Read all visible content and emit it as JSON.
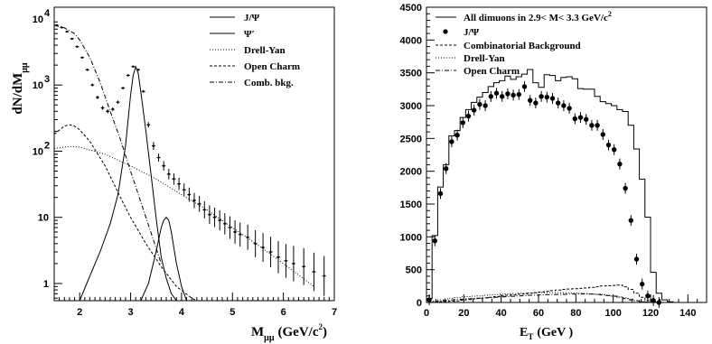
{
  "chart_data": [
    {
      "type": "line",
      "log_y": true,
      "xlabel": "M",
      "xlabel_sub": "μμ",
      "xlabel_unit": "(GeV/c",
      "xlabel_sup": "2",
      "xlabel_close": ")",
      "ylabel": "dN/dM",
      "ylabel_sub": "μμ",
      "xlim": [
        1.5,
        7
      ],
      "ylim": [
        0.55,
        15000
      ],
      "x_ticks": [
        "2",
        "3",
        "4",
        "5",
        "6",
        "7"
      ],
      "y_ticks": [
        {
          "value": 1,
          "label": "1"
        },
        {
          "value": 10,
          "label": "10"
        },
        {
          "value": 100,
          "base": "10",
          "exp": "2"
        },
        {
          "value": 1000,
          "base": "10",
          "exp": "3"
        },
        {
          "value": 10000,
          "base": "10",
          "exp": "4"
        }
      ],
      "legend_position": "top-right",
      "series": [
        {
          "name": "J/Ψ",
          "style": "solid",
          "x": [
            2.0,
            2.2,
            2.4,
            2.6,
            2.75,
            2.9,
            3.0,
            3.05,
            3.1,
            3.15,
            3.2,
            3.3,
            3.4,
            3.5,
            3.6,
            3.7,
            3.8,
            3.9
          ],
          "y": [
            0.55,
            1.3,
            3.0,
            8,
            22,
            120,
            700,
            1400,
            1900,
            1500,
            800,
            200,
            45,
            10,
            2.5,
            1.2,
            0.7,
            0.55
          ]
        },
        {
          "name": "Ψ′",
          "style": "solid",
          "x": [
            3.2,
            3.35,
            3.5,
            3.6,
            3.65,
            3.7,
            3.75,
            3.8,
            3.9,
            4.0,
            4.1
          ],
          "y": [
            0.55,
            1.0,
            3.0,
            7.0,
            9.0,
            10,
            9.0,
            6.0,
            2.0,
            0.9,
            0.55
          ]
        },
        {
          "name": "Drell-Yan",
          "style": "dotted",
          "x": [
            1.5,
            1.8,
            2.0,
            2.5,
            3.0,
            3.5,
            4.0,
            4.5,
            5.0,
            5.5,
            6.0,
            6.6
          ],
          "y": [
            110,
            118,
            115,
            90,
            60,
            38,
            22,
            13,
            7,
            3.8,
            2.0,
            0.9
          ]
        },
        {
          "name": "Open Charm",
          "style": "dashed",
          "x": [
            1.5,
            1.7,
            1.8,
            1.9,
            2.0,
            2.2,
            2.5,
            2.8,
            3.0,
            3.3,
            3.6,
            3.9,
            4.2,
            4.3
          ],
          "y": [
            180,
            240,
            250,
            240,
            210,
            140,
            60,
            20,
            10,
            4.0,
            1.8,
            0.9,
            0.6,
            0.55
          ]
        },
        {
          "name": "Comb. bkg.",
          "style": "dashdot",
          "x": [
            1.5,
            1.7,
            1.9,
            2.0,
            2.2,
            2.4,
            2.6,
            2.8,
            3.0,
            3.3,
            3.6
          ],
          "y": [
            8000,
            7300,
            6000,
            4800,
            2600,
            1100,
            400,
            150,
            50,
            10,
            2.0
          ]
        }
      ],
      "data_points": {
        "x": [
          1.55,
          1.65,
          1.75,
          1.85,
          1.95,
          2.05,
          2.15,
          2.25,
          2.35,
          2.45,
          2.55,
          2.65,
          2.75,
          2.85,
          2.95,
          3.05,
          3.15,
          3.25,
          3.35,
          3.45,
          3.55,
          3.65,
          3.75,
          3.85,
          3.95,
          4.05,
          4.15,
          4.25,
          4.35,
          4.45,
          4.55,
          4.65,
          4.75,
          4.85,
          4.95,
          5.05,
          5.15,
          5.3,
          5.45,
          5.6,
          5.75,
          5.9,
          6.05,
          6.2,
          6.4,
          6.6,
          6.8
        ],
        "y": [
          8000,
          7400,
          6400,
          5000,
          3800,
          2600,
          1700,
          1000,
          650,
          450,
          400,
          430,
          550,
          900,
          1400,
          1900,
          1700,
          800,
          250,
          120,
          80,
          60,
          45,
          38,
          32,
          26,
          22,
          18,
          16,
          13,
          11,
          10,
          9,
          8,
          7,
          6,
          5.5,
          5,
          4,
          3.5,
          3,
          2.5,
          2.2,
          2,
          1.8,
          1.5,
          1.3
        ],
        "err": [
          0.02,
          0.02,
          0.02,
          0.03,
          0.03,
          0.03,
          0.04,
          0.05,
          0.06,
          0.07,
          0.07,
          0.07,
          0.06,
          0.05,
          0.04,
          0.03,
          0.03,
          0.05,
          0.1,
          0.15,
          0.15,
          0.18,
          0.2,
          0.22,
          0.24,
          0.25,
          0.28,
          0.3,
          0.32,
          0.35,
          0.38,
          0.4,
          0.42,
          0.45,
          0.48,
          0.5,
          0.52,
          0.55,
          0.6,
          0.65,
          0.7,
          0.75,
          0.8,
          0.85,
          0.9,
          0.95,
          1.0
        ]
      }
    },
    {
      "type": "bar",
      "xlabel": "E",
      "xlabel_sub": "T",
      "xlabel_unit": "(GeV )",
      "xlim": [
        0,
        150
      ],
      "ylim": [
        0,
        4500
      ],
      "x_ticks": [
        "0",
        "20",
        "40",
        "60",
        "80",
        "100",
        "120",
        "140"
      ],
      "y_ticks": [
        "0",
        "500",
        "1000",
        "1500",
        "2000",
        "2500",
        "3000",
        "3500",
        "4000",
        "4500"
      ],
      "legend_position": "top-left",
      "bin_width": 3,
      "bin_starts": [
        0,
        3,
        6,
        9,
        12,
        15,
        18,
        21,
        24,
        27,
        30,
        33,
        36,
        39,
        42,
        45,
        48,
        51,
        54,
        57,
        60,
        63,
        66,
        69,
        72,
        75,
        78,
        81,
        84,
        87,
        90,
        93,
        96,
        99,
        102,
        105,
        108,
        111,
        114,
        117,
        120,
        123,
        126,
        129,
        132
      ],
      "series": [
        {
          "name": "All dimuons in 2.9< M< 3.3 GeV/c²",
          "style": "histogram",
          "values": [
            60,
            1020,
            1760,
            2100,
            2540,
            2620,
            2820,
            2940,
            3050,
            3130,
            3200,
            3290,
            3350,
            3380,
            3450,
            3400,
            3440,
            3480,
            3550,
            3350,
            3280,
            3470,
            3460,
            3380,
            3430,
            3440,
            3410,
            3260,
            3250,
            3250,
            3140,
            3060,
            3030,
            3000,
            2940,
            2910,
            2700,
            2340,
            1880,
            1300,
            460,
            140,
            40,
            10,
            0
          ]
        },
        {
          "name": "J/Ψ",
          "style": "points",
          "x": [
            1.5,
            4.5,
            7.5,
            10.5,
            13.5,
            16.5,
            19.5,
            22.5,
            25.5,
            28.5,
            31.5,
            34.5,
            37.5,
            40.5,
            43.5,
            46.5,
            49.5,
            52.5,
            55.5,
            58.5,
            61.5,
            64.5,
            67.5,
            70.5,
            73.5,
            76.5,
            79.5,
            82.5,
            85.5,
            88.5,
            91.5,
            94.5,
            97.5,
            100.5,
            103.5,
            106.5,
            109.5,
            112.5,
            115.5,
            118.5,
            121.5,
            124.5
          ],
          "values": [
            40,
            940,
            1660,
            2040,
            2450,
            2550,
            2740,
            2840,
            2930,
            3020,
            3000,
            3140,
            3190,
            3140,
            3180,
            3160,
            3170,
            3290,
            3080,
            3040,
            3140,
            3130,
            3110,
            3040,
            3000,
            2960,
            2800,
            2820,
            2790,
            2700,
            2700,
            2560,
            2400,
            2330,
            2110,
            1740,
            1250,
            660,
            280,
            100,
            30,
            0
          ]
        },
        {
          "name": "Combinatorial Background",
          "style": "dashed",
          "values": [
            0,
            5,
            10,
            15,
            20,
            25,
            35,
            45,
            55,
            60,
            70,
            80,
            90,
            100,
            110,
            115,
            125,
            130,
            140,
            150,
            160,
            170,
            180,
            190,
            200,
            205,
            210,
            215,
            220,
            230,
            240,
            250,
            255,
            260,
            265,
            240,
            200,
            140,
            80,
            30,
            5,
            0,
            0,
            0,
            0
          ]
        },
        {
          "name": "Drell-Yan",
          "style": "dotted",
          "values": [
            0,
            20,
            40,
            55,
            65,
            75,
            85,
            90,
            95,
            100,
            110,
            115,
            120,
            125,
            130,
            135,
            140,
            140,
            145,
            145,
            150,
            150,
            150,
            150,
            148,
            146,
            144,
            140,
            135,
            130,
            125,
            120,
            110,
            100,
            85,
            70,
            50,
            30,
            15,
            5,
            0,
            0,
            0,
            0,
            0
          ]
        },
        {
          "name": "Open Charm",
          "style": "dashdot",
          "values": [
            0,
            10,
            20,
            30,
            40,
            45,
            50,
            55,
            60,
            65,
            70,
            75,
            80,
            85,
            90,
            95,
            100,
            105,
            110,
            112,
            115,
            118,
            120,
            122,
            124,
            126,
            128,
            130,
            132,
            128,
            122,
            115,
            105,
            95,
            80,
            60,
            40,
            25,
            12,
            5,
            0,
            0,
            0,
            0,
            0
          ]
        }
      ]
    }
  ],
  "legend_left": {
    "jpsi": "J/Ψ",
    "psiprime": "Ψ′",
    "dy": "Drell-Yan",
    "oc": "Open Charm",
    "comb": "Comb. bkg."
  },
  "legend_right": {
    "all_pre": "All dimuons in 2.9< M< 3.3 GeV/c",
    "all_sup": "2",
    "jpsi": "J/Ψ",
    "comb": "Combinatorial Background",
    "dy": "Drell-Yan",
    "oc": "Open Charm"
  }
}
